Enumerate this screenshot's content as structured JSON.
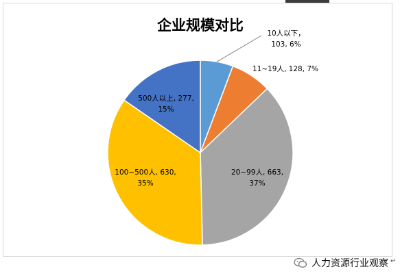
{
  "chart_data": {
    "type": "pie",
    "title": "企业规模对比",
    "start_angle_deg": 0,
    "direction": "clockwise",
    "slices": [
      {
        "name": "10人以下",
        "value": 103,
        "percent": "6%",
        "color": "#5b9bd5",
        "label_lines": [
          "10人以下，",
          "103, 6%"
        ]
      },
      {
        "name": "11~19人",
        "value": 128,
        "percent": "7%",
        "color": "#ed7d31",
        "label_lines": [
          "11~19人, 128, 7%"
        ]
      },
      {
        "name": "20~99人",
        "value": 663,
        "percent": "37%",
        "color": "#a5a5a5",
        "label_lines": [
          "20~99人, 663,",
          "37%"
        ]
      },
      {
        "name": "100~500人",
        "value": 630,
        "percent": "35%",
        "color": "#ffc000",
        "label_lines": [
          "100~500人, 630,",
          "35%"
        ]
      },
      {
        "name": "500人以上",
        "value": 277,
        "percent": "15%",
        "color": "#4472c4",
        "label_lines": [
          "500人以上, 277,",
          "15%"
        ]
      }
    ]
  },
  "watermark": {
    "text": "人力资源行业观察",
    "icon": "wechat-icon"
  },
  "return_mark": "↵"
}
